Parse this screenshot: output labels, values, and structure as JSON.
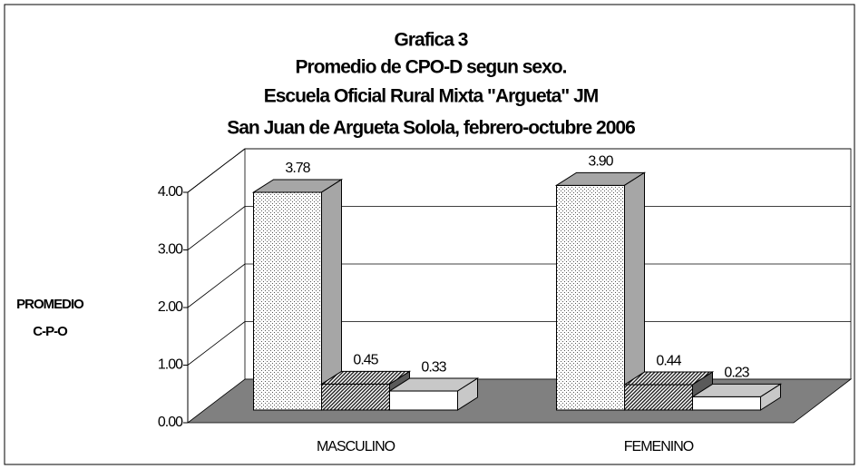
{
  "chart_data": {
    "type": "bar3d",
    "title": [
      "Grafica 3",
      "Promedio de CPO-D segun sexo.",
      "Escuela Oficial Rural Mixta \"Argueta\" JM",
      "San Juan de Argueta Solola, febrero-octubre 2006"
    ],
    "ylabel": [
      "PROMEDIO",
      "C-P-O"
    ],
    "categories": [
      "MASCULINO",
      "FEMENINO"
    ],
    "series": [
      {
        "color": "#a6a6a6",
        "values": [
          3.78,
          3.9
        ],
        "value_labels": [
          "3.78",
          "3.90"
        ]
      },
      {
        "color": "#5a5a5a",
        "values": [
          0.45,
          0.44
        ],
        "value_labels": [
          "0.45",
          "0.44"
        ]
      },
      {
        "color": "#c8c8c8",
        "values": [
          0.33,
          0.23
        ],
        "value_labels": [
          "0.33",
          "0.23"
        ]
      }
    ],
    "ylim": [
      0,
      4
    ],
    "yticks": [
      {
        "value": 0,
        "label": "0.00"
      },
      {
        "value": 1,
        "label": "1.00"
      },
      {
        "value": 2,
        "label": "2.00"
      },
      {
        "value": 3,
        "label": "3.00"
      },
      {
        "value": 4,
        "label": "4.00"
      }
    ],
    "grid": true,
    "floor_color": "#808080"
  }
}
